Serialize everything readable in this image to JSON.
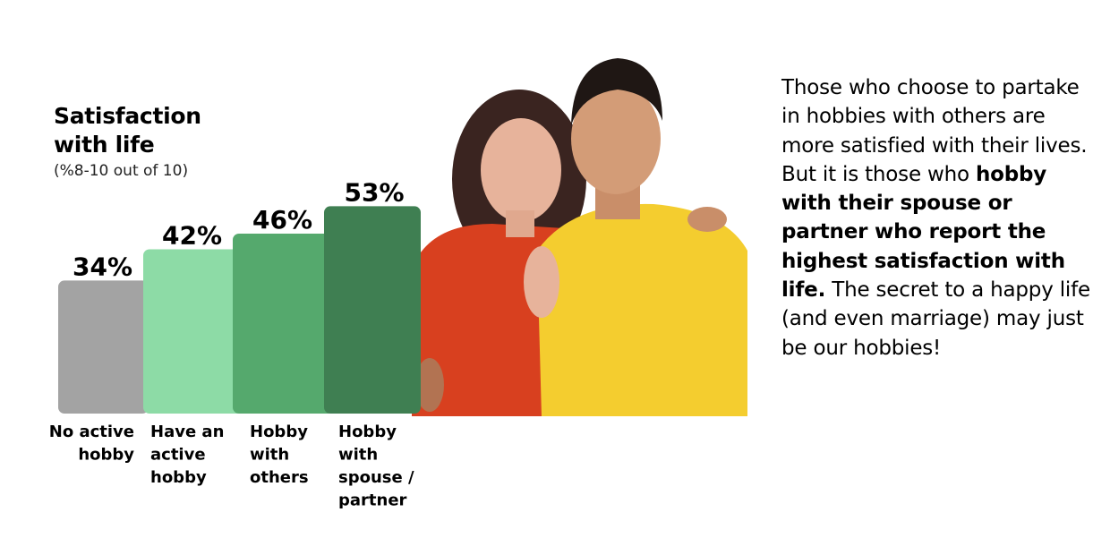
{
  "chart_data": {
    "type": "bar",
    "title": "Satisfaction with life",
    "subtitle": "(%8-10 out of 10)",
    "categories": [
      "No active hobby",
      "Have an active hobby",
      "Hobby with others",
      "Hobby with spouse / partner"
    ],
    "values": [
      34,
      42,
      46,
      53
    ],
    "data_labels": [
      "34%",
      "42%",
      "46%",
      "53%"
    ],
    "colors": [
      "#a3a3a3",
      "#8ddba6",
      "#55a96d",
      "#3f7f52"
    ],
    "ylim": [
      0,
      53
    ],
    "grid": false,
    "legend": "none"
  },
  "side_text": {
    "intro": "Those who choose to partake in hobbies with others are more satisfied with their lives. But it is those who ",
    "bold": "hobby with their spouse or partner who report the highest satisfaction with life.",
    "outro": " The secret to a happy life (and even marriage) may just be our hobbies!"
  }
}
